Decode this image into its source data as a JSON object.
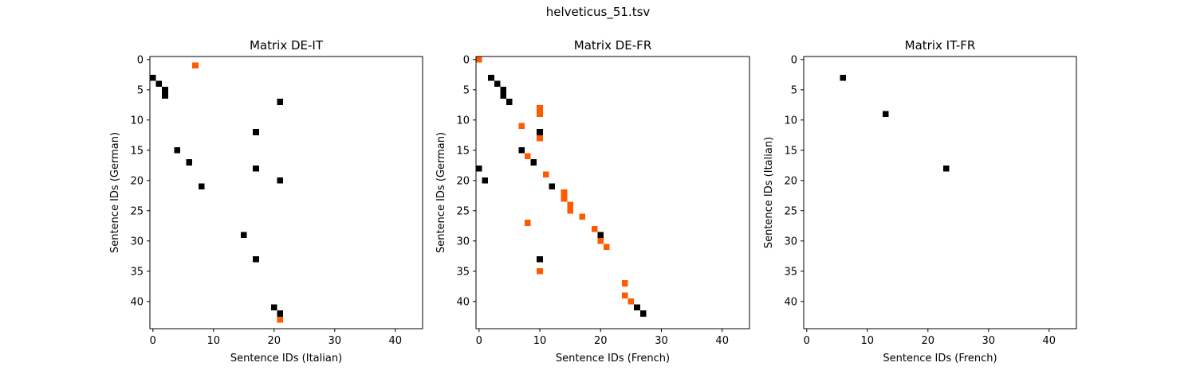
{
  "figure": {
    "suptitle": "helveticus_51.tsv"
  },
  "colors": {
    "black": "#000000",
    "orange": "#ff5a00"
  },
  "chart_data": [
    {
      "type": "heatmap",
      "title": "Matrix DE-IT",
      "xlabel": "Sentence IDs (Italian)",
      "ylabel": "Sentence IDs (German)",
      "xlim": [
        -0.5,
        44.5
      ],
      "ylim": [
        44.5,
        -0.5
      ],
      "xticks": [
        0,
        10,
        20,
        30,
        40
      ],
      "yticks": [
        0,
        5,
        10,
        15,
        20,
        25,
        30,
        35,
        40
      ],
      "grid": false,
      "cells_black": [
        [
          0,
          3
        ],
        [
          1,
          4
        ],
        [
          2,
          5
        ],
        [
          2,
          6
        ],
        [
          21,
          7
        ],
        [
          17,
          12
        ],
        [
          4,
          15
        ],
        [
          6,
          17
        ],
        [
          17,
          18
        ],
        [
          21,
          20
        ],
        [
          8,
          21
        ],
        [
          15,
          29
        ],
        [
          17,
          33
        ],
        [
          20,
          41
        ],
        [
          21,
          42
        ]
      ],
      "cells_orange": [
        [
          7,
          1
        ],
        [
          21,
          43
        ]
      ]
    },
    {
      "type": "heatmap",
      "title": "Matrix DE-FR",
      "xlabel": "Sentence IDs (French)",
      "ylabel": "Sentence IDs (German)",
      "xlim": [
        -0.5,
        44.5
      ],
      "ylim": [
        44.5,
        -0.5
      ],
      "xticks": [
        0,
        10,
        20,
        30,
        40
      ],
      "yticks": [
        0,
        5,
        10,
        15,
        20,
        25,
        30,
        35,
        40
      ],
      "grid": false,
      "cells_black": [
        [
          2,
          3
        ],
        [
          3,
          4
        ],
        [
          4,
          5
        ],
        [
          4,
          6
        ],
        [
          5,
          7
        ],
        [
          10,
          12
        ],
        [
          7,
          15
        ],
        [
          9,
          17
        ],
        [
          0,
          18
        ],
        [
          1,
          20
        ],
        [
          12,
          21
        ],
        [
          20,
          29
        ],
        [
          10,
          33
        ],
        [
          26,
          41
        ],
        [
          27,
          42
        ]
      ],
      "cells_orange": [
        [
          0,
          0
        ],
        [
          10,
          8
        ],
        [
          10,
          9
        ],
        [
          7,
          11
        ],
        [
          10,
          13
        ],
        [
          8,
          16
        ],
        [
          11,
          19
        ],
        [
          14,
          22
        ],
        [
          14,
          23
        ],
        [
          15,
          24
        ],
        [
          15,
          25
        ],
        [
          17,
          26
        ],
        [
          8,
          27
        ],
        [
          19,
          28
        ],
        [
          20,
          30
        ],
        [
          21,
          31
        ],
        [
          10,
          35
        ],
        [
          24,
          37
        ],
        [
          24,
          39
        ],
        [
          25,
          40
        ]
      ]
    },
    {
      "type": "heatmap",
      "title": "Matrix IT-FR",
      "xlabel": "Sentence IDs (French)",
      "ylabel": "Sentence IDs (Italian)",
      "xlim": [
        -0.5,
        44.5
      ],
      "ylim": [
        44.5,
        -0.5
      ],
      "xticks": [
        0,
        10,
        20,
        30,
        40
      ],
      "yticks": [
        0,
        5,
        10,
        15,
        20,
        25,
        30,
        35,
        40
      ],
      "grid": false,
      "cells_black": [
        [
          6,
          3
        ],
        [
          13,
          9
        ],
        [
          23,
          18
        ]
      ],
      "cells_orange": []
    }
  ]
}
